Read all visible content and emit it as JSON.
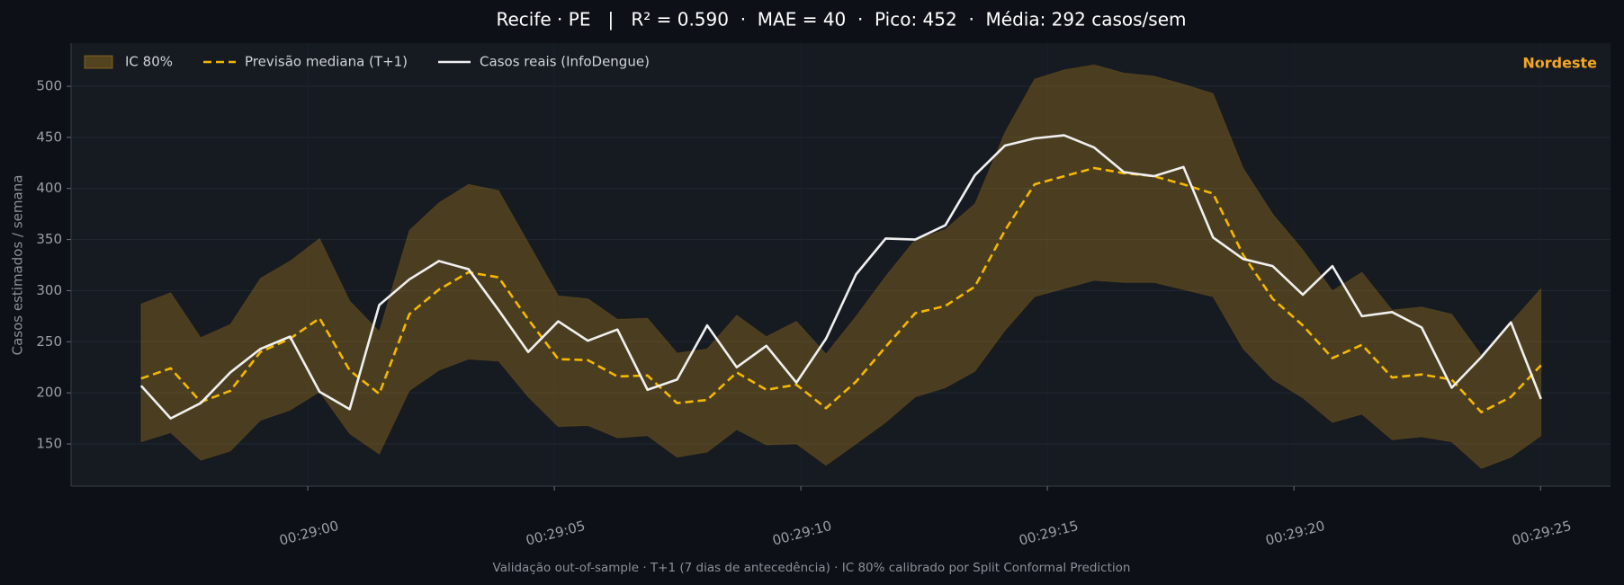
{
  "chart_data": {
    "type": "line",
    "title": "Recife · PE   |   R² = 0.590  ·  MAE = 40  ·  Pico: 452  ·  Média: 292 casos/sem",
    "y_label": "Casos estimados / semana",
    "annotation": "Nordeste",
    "footer": "Validação out-of-sample · T+1 (7 dias de antecedência) · IC 80% calibrado por Split Conformal Prediction",
    "legend": "upper left",
    "grid": true,
    "x": [
      1736.62,
      1737.22,
      1737.83,
      1738.43,
      1739.04,
      1739.64,
      1740.24,
      1740.85,
      1741.45,
      1742.06,
      1742.66,
      1743.26,
      1743.87,
      1744.47,
      1745.08,
      1745.68,
      1746.28,
      1746.89,
      1747.49,
      1748.1,
      1748.7,
      1749.3,
      1749.91,
      1750.51,
      1751.12,
      1751.72,
      1752.32,
      1752.93,
      1753.53,
      1754.14,
      1754.74,
      1755.34,
      1755.95,
      1756.55,
      1757.16,
      1757.76,
      1758.36,
      1758.97,
      1759.57,
      1760.18,
      1760.78,
      1761.38,
      1761.99,
      1762.59,
      1763.2,
      1763.8,
      1764.4,
      1765.01
    ],
    "xlim": [
      1735.2,
      1766.42
    ],
    "xticks": [
      {
        "value": 1740,
        "label": "00:29:00"
      },
      {
        "value": 1745,
        "label": "00:29:05"
      },
      {
        "value": 1750,
        "label": "00:29:10"
      },
      {
        "value": 1755,
        "label": "00:29:15"
      },
      {
        "value": 1760,
        "label": "00:29:20"
      },
      {
        "value": 1765,
        "label": "00:29:25"
      }
    ],
    "ylim": [
      108.7,
      542.2
    ],
    "yticks": [
      150,
      200,
      250,
      300,
      350,
      400,
      450,
      500
    ],
    "band": {
      "name": "IC 80%",
      "color": "#c8901a",
      "upper": [
        287,
        298,
        254,
        267,
        312,
        329,
        351,
        290,
        260,
        359,
        386,
        404,
        398,
        347,
        295,
        292,
        272,
        273,
        239,
        243,
        276,
        255,
        270,
        238,
        275,
        314,
        350,
        360,
        385,
        455,
        507,
        516,
        521,
        513,
        510,
        502,
        493,
        420,
        375,
        340,
        300,
        318,
        281,
        284,
        277,
        237,
        269,
        302
      ],
      "lower": [
        152,
        161,
        134,
        143,
        173,
        183,
        201,
        160,
        140,
        202,
        222,
        233,
        231,
        196,
        167,
        168,
        156,
        158,
        137,
        142,
        164,
        149,
        150,
        129,
        150,
        171,
        196,
        205,
        221,
        261,
        294,
        302,
        310,
        308,
        308,
        301,
        294,
        243,
        213,
        195,
        171,
        179,
        154,
        157,
        152,
        126,
        137,
        158
      ]
    },
    "series": [
      {
        "name": "Previsão mediana (T+1)",
        "color": "#f5b800",
        "dashed": true,
        "values": [
          214,
          224,
          191,
          202,
          240,
          253,
          273,
          222,
          199,
          277,
          301,
          318,
          313,
          272,
          233,
          232,
          216,
          217,
          190,
          193,
          220,
          203,
          208,
          185,
          211,
          245,
          278,
          285,
          304,
          359,
          404,
          412,
          420,
          415,
          412,
          404,
          395,
          335,
          292,
          266,
          234,
          247,
          215,
          218,
          213,
          181,
          196,
          227
        ]
      },
      {
        "name": "Casos reais (InfoDengue)",
        "color": "#f0f0f0",
        "dashed": false,
        "values": [
          207,
          175,
          190,
          220,
          243,
          255,
          201,
          184,
          286,
          311,
          329,
          321,
          281,
          240,
          270,
          251,
          262,
          203,
          213,
          266,
          225,
          246,
          210,
          253,
          316,
          351,
          350,
          364,
          413,
          442,
          449,
          452,
          440,
          416,
          412,
          421,
          352,
          331,
          324,
          296,
          324,
          275,
          279,
          264,
          205,
          235,
          269,
          194
        ]
      }
    ]
  }
}
